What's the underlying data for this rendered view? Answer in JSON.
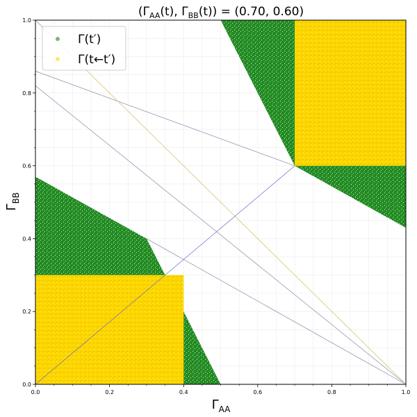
{
  "chart_data": {
    "type": "scatter",
    "title": "(Γ_AA(t), Γ_BB(t)) = (0.70, 0.60)",
    "title_parts": {
      "open": "(",
      "g1": "Γ",
      "s1": "AA",
      "arg1": "(t), ",
      "g2": "Γ",
      "s2": "BB",
      "arg2": "(t)) = (0.70, 0.60)"
    },
    "xlabel": {
      "symbol": "Γ",
      "sub": "AA"
    },
    "ylabel": {
      "symbol": "Γ",
      "sub": "BB"
    },
    "xlim": [
      0,
      1
    ],
    "ylim": [
      0,
      1
    ],
    "x_ticks": [
      "0.0",
      "0.2",
      "0.4",
      "0.6",
      "0.8",
      "1.0"
    ],
    "y_ticks": [
      "0.0",
      "0.2",
      "0.4",
      "0.6",
      "0.8",
      "1.0"
    ],
    "grid": true,
    "legend_position": "top-left",
    "series": [
      {
        "name": "Γ(t′)",
        "color": "#228b22",
        "regions": [
          [
            [
              0,
              0
            ],
            [
              0.5,
              0
            ],
            [
              0.3,
              0.4
            ],
            [
              0,
              0.57
            ]
          ],
          [
            [
              0.5,
              1
            ],
            [
              1,
              1
            ],
            [
              1,
              0.43
            ],
            [
              0.7,
              0.6
            ]
          ]
        ]
      },
      {
        "name": "Γ(t←t′)",
        "color": "#ffd700",
        "regions": [
          [
            [
              0,
              0
            ],
            [
              0.4,
              0
            ],
            [
              0.4,
              0.3
            ],
            [
              0,
              0.3
            ]
          ],
          [
            [
              0.7,
              0.6
            ],
            [
              1,
              0.6
            ],
            [
              1,
              1
            ],
            [
              0.7,
              1
            ]
          ]
        ]
      }
    ],
    "guide_lines": [
      {
        "color": "#8888aa",
        "points": [
          [
            0,
            1
          ],
          [
            1,
            0
          ]
        ]
      },
      {
        "color": "#8888aa",
        "points": [
          [
            0,
            0.82
          ],
          [
            1,
            0
          ]
        ]
      },
      {
        "color": "#8888aa",
        "points": [
          [
            0.3,
            0.4
          ],
          [
            1,
            0
          ]
        ]
      },
      {
        "color": "#8888aa",
        "points": [
          [
            0,
            0.86
          ],
          [
            0.7,
            0.6
          ]
        ]
      },
      {
        "color": "#e8d870",
        "points": [
          [
            0.05,
            0.95
          ],
          [
            1,
            0
          ]
        ]
      },
      {
        "color": "#6666cc",
        "points": [
          [
            0,
            0
          ],
          [
            0.7,
            0.6
          ]
        ]
      }
    ],
    "legend": {
      "label1_main": "Γ(t′)",
      "label2_main": "Γ(t←t′)"
    }
  }
}
